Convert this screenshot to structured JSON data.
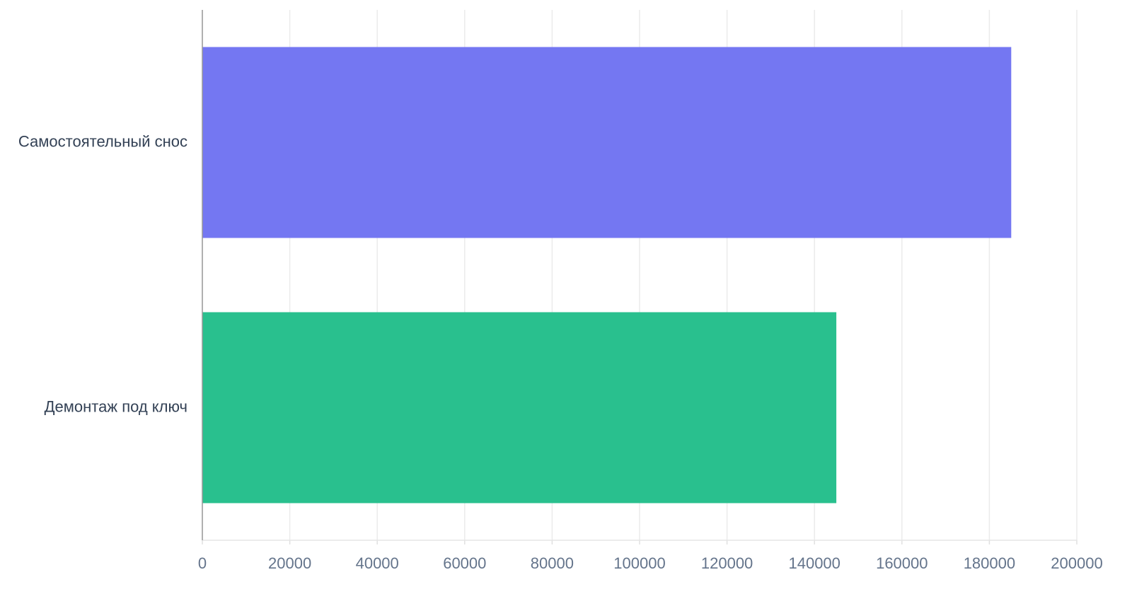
{
  "chart_data": {
    "type": "hbar",
    "categories": [
      "Самостоятельный снос",
      "Демонтаж под ключ"
    ],
    "values": [
      185000,
      145000
    ],
    "colors": [
      "#7477f2",
      "#29c08e"
    ],
    "xlim": [
      0,
      200000
    ],
    "xticks": [
      0,
      20000,
      40000,
      60000,
      80000,
      100000,
      120000,
      140000,
      160000,
      180000,
      200000
    ],
    "grid": true
  }
}
